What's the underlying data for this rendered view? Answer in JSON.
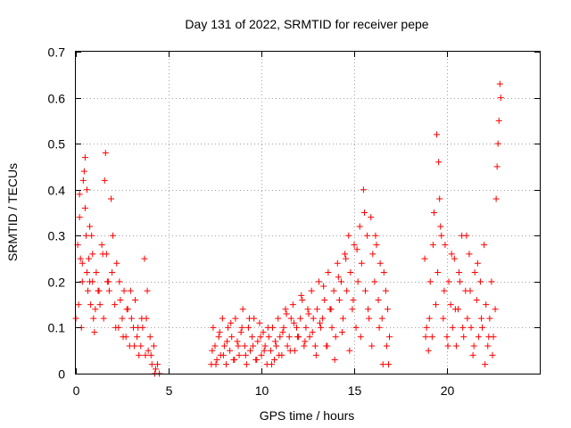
{
  "chart_data": {
    "type": "scatter",
    "title": "Day 131 of 2022, SRMTID for receiver pepe",
    "xlabel": "GPS time / hours",
    "ylabel": "SRMTID / TECUs",
    "xlim": [
      0,
      25
    ],
    "ylim": [
      0,
      0.7
    ],
    "x_ticks": [
      0,
      5,
      10,
      15,
      20
    ],
    "y_ticks": [
      0,
      0.1,
      0.2,
      0.3,
      0.4,
      0.5,
      0.6,
      0.7
    ],
    "x_tick_labels": [
      "0",
      "5",
      "10",
      "15",
      "20"
    ],
    "y_tick_labels": [
      "0",
      "0.1",
      "0.2",
      "0.3",
      "0.4",
      "0.5",
      "0.6",
      "0.7"
    ],
    "grid": true,
    "marker": "+",
    "color": "#ff0000",
    "series": [
      {
        "name": "SRMTID",
        "x": [
          0.0,
          0.1,
          0.15,
          0.2,
          0.25,
          0.3,
          0.35,
          0.4,
          0.45,
          0.5,
          0.55,
          0.6,
          0.65,
          0.7,
          0.75,
          0.8,
          0.85,
          0.9,
          0.95,
          1.0,
          1.1,
          1.2,
          1.3,
          1.4,
          1.5,
          1.6,
          1.65,
          1.7,
          1.8,
          1.9,
          2.0,
          2.1,
          2.2,
          2.3,
          2.4,
          2.5,
          2.6,
          2.7,
          2.8,
          2.9,
          3.0,
          3.1,
          3.2,
          3.3,
          3.4,
          3.5,
          3.6,
          3.7,
          3.8,
          3.9,
          4.0,
          4.1,
          4.2,
          4.3,
          4.4,
          4.5,
          0.2,
          0.35,
          0.5,
          0.6,
          0.75,
          0.9,
          1.05,
          1.25,
          1.45,
          1.55,
          1.75,
          1.95,
          2.15,
          2.35,
          2.55,
          2.75,
          2.95,
          3.15,
          3.35,
          3.55,
          3.75,
          3.85,
          4.05,
          4.25,
          7.3,
          7.4,
          7.5,
          7.6,
          7.7,
          7.8,
          7.9,
          8.0,
          8.1,
          8.2,
          8.3,
          8.4,
          8.5,
          8.6,
          8.7,
          8.8,
          8.9,
          9.0,
          9.1,
          9.2,
          9.3,
          9.4,
          9.5,
          9.6,
          9.7,
          9.8,
          9.9,
          10.0,
          10.1,
          10.2,
          10.3,
          10.4,
          10.5,
          10.6,
          10.7,
          10.8,
          10.9,
          11.0,
          11.1,
          11.2,
          11.3,
          11.4,
          11.5,
          11.6,
          11.7,
          11.8,
          11.9,
          12.0,
          12.1,
          12.2,
          12.3,
          12.4,
          12.5,
          12.6,
          12.7,
          12.8,
          12.9,
          13.0,
          13.1,
          13.2,
          13.3,
          13.4,
          13.5,
          13.6,
          13.7,
          13.8,
          13.9,
          14.0,
          14.1,
          14.2,
          14.3,
          14.4,
          14.5,
          14.6,
          14.7,
          14.8,
          14.9,
          15.0,
          15.1,
          15.2,
          15.3,
          15.4,
          15.5,
          15.6,
          15.7,
          15.8,
          15.9,
          16.0,
          16.1,
          16.2,
          16.3,
          16.4,
          16.5,
          16.6,
          16.7,
          16.8,
          16.9,
          7.35,
          7.55,
          7.75,
          7.95,
          8.15,
          8.35,
          8.55,
          8.75,
          8.95,
          9.15,
          9.35,
          9.55,
          9.75,
          9.95,
          10.15,
          10.35,
          10.55,
          10.75,
          10.95,
          11.15,
          11.35,
          11.55,
          11.75,
          11.95,
          12.15,
          12.35,
          12.55,
          12.75,
          12.95,
          13.15,
          13.35,
          13.55,
          13.75,
          13.95,
          14.15,
          14.35,
          14.55,
          14.75,
          14.95,
          15.15,
          15.35,
          15.55,
          15.75,
          15.95,
          16.15,
          16.35,
          16.55,
          16.75,
          16.85,
          18.8,
          18.9,
          19.0,
          19.1,
          19.2,
          19.3,
          19.4,
          19.5,
          19.6,
          19.7,
          19.8,
          19.9,
          20.0,
          20.1,
          20.2,
          20.3,
          20.4,
          20.5,
          20.6,
          20.7,
          20.8,
          20.9,
          21.0,
          21.1,
          21.2,
          21.3,
          21.4,
          21.5,
          21.6,
          21.7,
          21.8,
          21.9,
          22.0,
          22.1,
          22.2,
          22.3,
          22.4,
          22.5,
          22.6,
          22.7,
          22.8,
          22.9,
          18.85,
          19.05,
          19.25,
          19.45,
          19.55,
          19.65,
          19.85,
          20.05,
          20.25,
          20.45,
          20.65,
          20.85,
          21.05,
          21.25,
          21.45,
          21.65,
          21.85,
          22.05,
          22.25,
          22.45,
          22.65,
          22.75,
          22.85
        ],
        "y": [
          0.12,
          0.28,
          0.15,
          0.39,
          0.25,
          0.1,
          0.2,
          0.42,
          0.44,
          0.47,
          0.3,
          0.22,
          0.18,
          0.25,
          0.2,
          0.15,
          0.3,
          0.26,
          0.12,
          0.09,
          0.22,
          0.18,
          0.15,
          0.28,
          0.12,
          0.48,
          0.26,
          0.2,
          0.18,
          0.38,
          0.3,
          0.15,
          0.24,
          0.1,
          0.16,
          0.12,
          0.18,
          0.08,
          0.14,
          0.06,
          0.12,
          0.1,
          0.16,
          0.08,
          0.04,
          0.06,
          0.1,
          0.25,
          0.12,
          0.05,
          0.08,
          0.02,
          0.06,
          0.01,
          0.02,
          0.0,
          0.34,
          0.24,
          0.36,
          0.4,
          0.32,
          0.2,
          0.14,
          0.18,
          0.26,
          0.42,
          0.2,
          0.22,
          0.1,
          0.2,
          0.08,
          0.14,
          0.18,
          0.06,
          0.1,
          0.12,
          0.04,
          0.18,
          0.04,
          0.0,
          0.02,
          0.1,
          0.06,
          0.03,
          0.08,
          0.04,
          0.12,
          0.06,
          0.02,
          0.1,
          0.05,
          0.08,
          0.03,
          0.12,
          0.07,
          0.04,
          0.09,
          0.14,
          0.06,
          0.02,
          0.1,
          0.05,
          0.08,
          0.12,
          0.03,
          0.07,
          0.11,
          0.04,
          0.09,
          0.06,
          0.02,
          0.08,
          0.05,
          0.1,
          0.03,
          0.06,
          0.12,
          0.08,
          0.04,
          0.1,
          0.14,
          0.06,
          0.08,
          0.12,
          0.15,
          0.05,
          0.1,
          0.08,
          0.12,
          0.16,
          0.06,
          0.1,
          0.14,
          0.08,
          0.18,
          0.12,
          0.06,
          0.14,
          0.2,
          0.1,
          0.12,
          0.16,
          0.06,
          0.22,
          0.14,
          0.1,
          0.18,
          0.08,
          0.24,
          0.16,
          0.2,
          0.12,
          0.26,
          0.18,
          0.3,
          0.22,
          0.14,
          0.28,
          0.1,
          0.2,
          0.32,
          0.24,
          0.4,
          0.18,
          0.3,
          0.12,
          0.34,
          0.26,
          0.2,
          0.28,
          0.16,
          0.24,
          0.12,
          0.22,
          0.18,
          0.14,
          0.08,
          0.05,
          0.02,
          0.09,
          0.04,
          0.07,
          0.11,
          0.03,
          0.06,
          0.1,
          0.04,
          0.12,
          0.06,
          0.03,
          0.08,
          0.05,
          0.1,
          0.02,
          0.07,
          0.04,
          0.09,
          0.13,
          0.05,
          0.11,
          0.08,
          0.17,
          0.07,
          0.13,
          0.09,
          0.04,
          0.11,
          0.19,
          0.06,
          0.14,
          0.03,
          0.21,
          0.09,
          0.25,
          0.05,
          0.16,
          0.27,
          0.08,
          0.35,
          0.14,
          0.06,
          0.3,
          0.1,
          0.02,
          0.06,
          0.02,
          0.25,
          0.1,
          0.05,
          0.2,
          0.08,
          0.35,
          0.15,
          0.22,
          0.38,
          0.3,
          0.12,
          0.28,
          0.08,
          0.2,
          0.15,
          0.1,
          0.25,
          0.06,
          0.14,
          0.2,
          0.3,
          0.08,
          0.18,
          0.12,
          0.26,
          0.1,
          0.04,
          0.22,
          0.16,
          0.08,
          0.2,
          0.1,
          0.28,
          0.15,
          0.06,
          0.12,
          0.2,
          0.08,
          0.14,
          0.45,
          0.55,
          0.6,
          0.08,
          0.12,
          0.28,
          0.52,
          0.46,
          0.32,
          0.18,
          0.06,
          0.26,
          0.14,
          0.22,
          0.1,
          0.3,
          0.18,
          0.06,
          0.24,
          0.12,
          0.02,
          0.08,
          0.04,
          0.38,
          0.5,
          0.63
        ]
      }
    ]
  }
}
